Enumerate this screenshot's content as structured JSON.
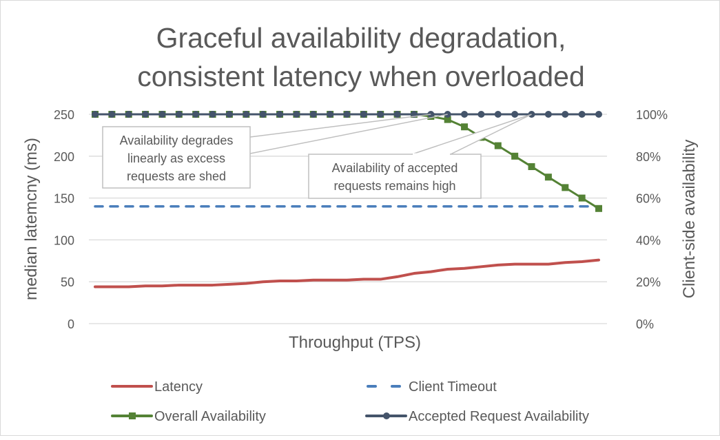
{
  "chart_data": {
    "type": "line",
    "title_lines": [
      "Graceful availability degradation,",
      "consistent latency when overloaded"
    ],
    "xlabel": "Throughput (TPS)",
    "ylabel_left": "median latemcny (ms)",
    "ylabel_right": "Client-side availability",
    "ylim_left": [
      0,
      250
    ],
    "ylim_right": [
      0,
      100
    ],
    "yticks_left": [
      "0",
      "50",
      "100",
      "150",
      "200",
      "250"
    ],
    "yticks_right": [
      "0%",
      "20%",
      "40%",
      "60%",
      "80%",
      "100%"
    ],
    "grid": true,
    "legend_position": "bottom",
    "x": [
      0,
      1,
      2,
      3,
      4,
      5,
      6,
      7,
      8,
      9,
      10,
      11,
      12,
      13,
      14,
      15,
      16,
      17,
      18,
      19,
      20,
      21,
      22,
      23,
      24,
      25,
      26,
      27,
      28,
      29,
      30
    ],
    "series": [
      {
        "name": "Latency",
        "axis": "left",
        "color": "#C0504D",
        "style": "solid",
        "values": [
          44,
          44,
          44,
          45,
          45,
          46,
          46,
          46,
          47,
          48,
          50,
          51,
          51,
          52,
          52,
          52,
          53,
          53,
          56,
          60,
          62,
          65,
          66,
          68,
          70,
          71,
          71,
          71,
          73,
          74,
          76
        ]
      },
      {
        "name": "Client Timeout",
        "axis": "left",
        "color": "#4A7EBB",
        "style": "dashed",
        "values": [
          140,
          140,
          140,
          140,
          140,
          140,
          140,
          140,
          140,
          140,
          140,
          140,
          140,
          140,
          140,
          140,
          140,
          140,
          140,
          140,
          140,
          140,
          140,
          140,
          140,
          140,
          140,
          140,
          140,
          140,
          140
        ]
      },
      {
        "name": "Overall Availability",
        "axis": "right",
        "color": "#548235",
        "style": "square-marker",
        "values": [
          100,
          100,
          100,
          100,
          100,
          100,
          100,
          100,
          100,
          100,
          100,
          100,
          100,
          100,
          100,
          100,
          100,
          100,
          100,
          100,
          99,
          97.5,
          94,
          89,
          85,
          80,
          75,
          70,
          65,
          60,
          55
        ]
      },
      {
        "name": "Accepted Request Availability",
        "axis": "right",
        "color": "#44546A",
        "style": "circle-marker",
        "values": [
          100,
          100,
          100,
          100,
          100,
          100,
          100,
          100,
          100,
          100,
          100,
          100,
          100,
          100,
          100,
          100,
          100,
          100,
          100,
          100,
          100,
          100,
          100,
          100,
          100,
          100,
          100,
          100,
          100,
          100,
          100
        ]
      }
    ],
    "annotations": [
      {
        "lines": [
          "Availability degrades",
          "linearly as excess",
          "requests are shed"
        ],
        "points_to_x": [
          20,
          21
        ]
      },
      {
        "lines": [
          "Availability of accepted",
          "requests remains high"
        ],
        "points_to_x": [
          26
        ]
      }
    ]
  }
}
